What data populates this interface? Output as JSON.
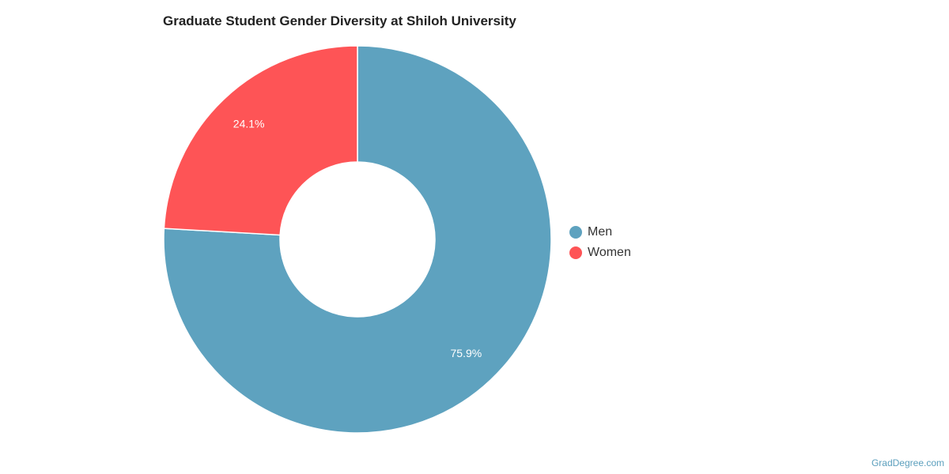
{
  "chart_data": {
    "type": "pie",
    "title": "Graduate Student Gender Diversity at Shiloh University",
    "donut": true,
    "legend_position": "right",
    "categories": [
      "Men",
      "Women"
    ],
    "values": [
      75.9,
      24.1
    ],
    "value_labels": [
      "75.9%",
      "24.1%"
    ],
    "colors": [
      "#5ea2bf",
      "#fe5456"
    ]
  },
  "credit": "GradDegree.com"
}
